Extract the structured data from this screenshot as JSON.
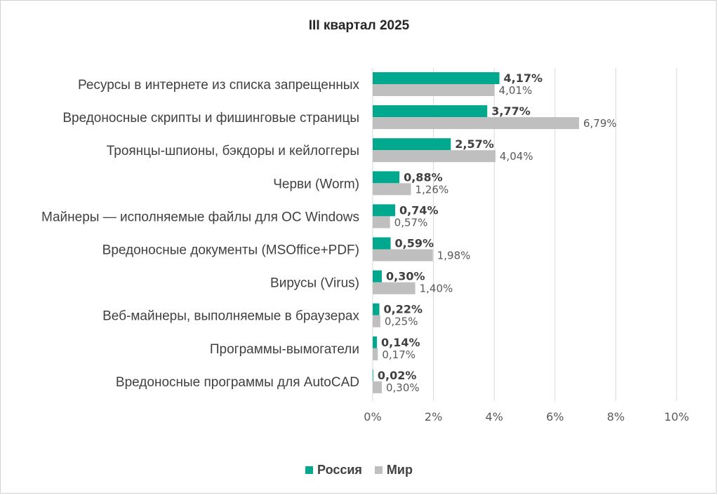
{
  "chart_data": {
    "type": "bar",
    "orientation": "horizontal",
    "title": "III квартал 2025",
    "categories": [
      "Ресурсы в интернете из списка запрещенных",
      "Вредоносные скрипты и фишинговые страницы",
      "Троянцы-шпионы, бэкдоры и кейлоггеры",
      "Черви (Worm)",
      "Майнеры — исполняемые файлы для ОС Windows",
      "Вредоносные документы (MSOffice+PDF)",
      "Вирусы (Virus)",
      "Веб-майнеры, выполняемые в браузерах",
      "Программы-вымогатели",
      "Вредоносные программы для AutoCAD"
    ],
    "series": [
      {
        "name": "Россия",
        "color": "#00A88E",
        "values": [
          4.17,
          3.77,
          2.57,
          0.88,
          0.74,
          0.59,
          0.3,
          0.22,
          0.14,
          0.02
        ],
        "labels": [
          "4,17%",
          "3,77%",
          "2,57%",
          "0,88%",
          "0,74%",
          "0,59%",
          "0,30%",
          "0,22%",
          "0,14%",
          "0,02%"
        ]
      },
      {
        "name": "Мир",
        "color": "#BFBFBF",
        "values": [
          4.01,
          6.79,
          4.04,
          1.26,
          0.57,
          1.98,
          1.4,
          0.25,
          0.17,
          0.3
        ],
        "labels": [
          "4,01%",
          "6,79%",
          "4,04%",
          "1,26%",
          "0,57%",
          "1,98%",
          "1,40%",
          "0,25%",
          "0,17%",
          "0,30%"
        ]
      }
    ],
    "xlim": [
      0,
      10
    ],
    "xticks": [
      "0%",
      "2%",
      "4%",
      "6%",
      "8%",
      "10%"
    ],
    "grid": true,
    "legend_position": "bottom"
  }
}
